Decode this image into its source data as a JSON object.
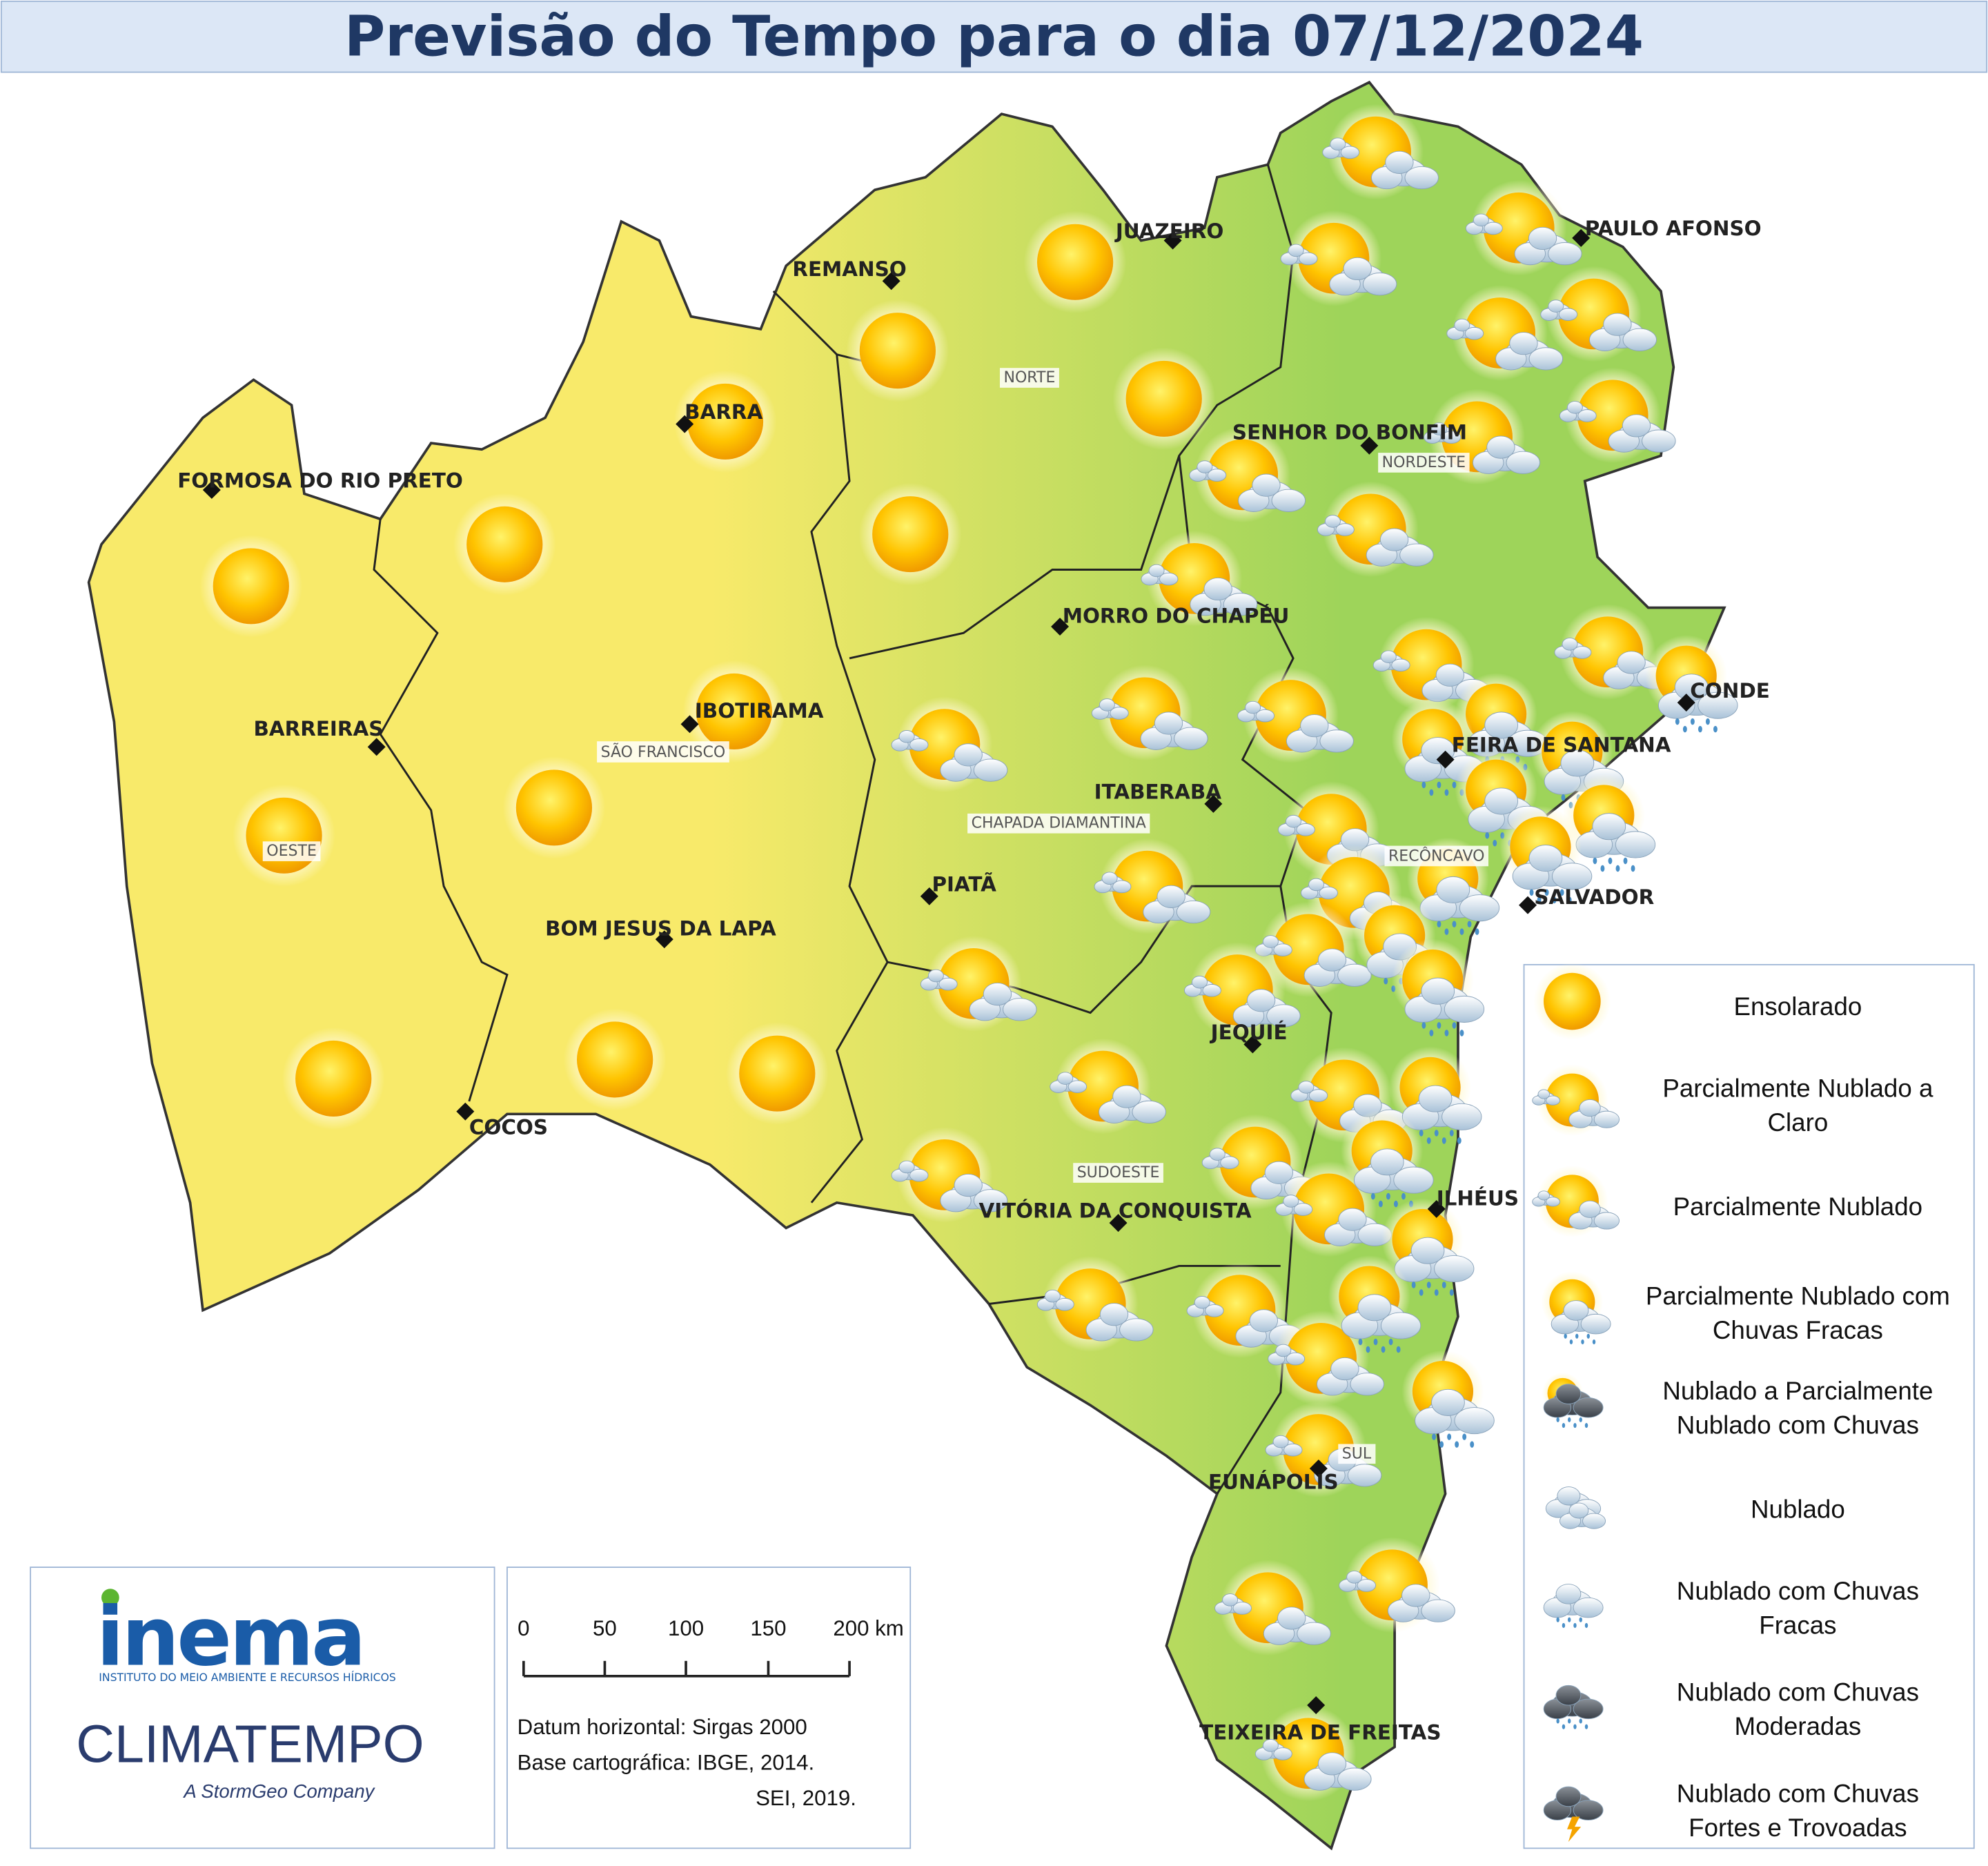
{
  "header": {
    "title": "Previsão do Tempo para o dia 07/12/2024"
  },
  "cities": [
    "JUAZEIRO",
    "REMANSO",
    "PAULO AFONSO",
    "BARRA",
    "SENHOR DO BONFIM",
    "FORMOSA DO RIO PRETO",
    "MORRO DO CHAPÉU",
    "CONDE",
    "IBOTIRAMA",
    "BARREIRAS",
    "FEIRA DE SANTANA",
    "ITABERABA",
    "PIATÃ",
    "SALVADOR",
    "BOM JESUS DA LAPA",
    "JEQUIÉ",
    "COCOS",
    "ILHÉUS",
    "VITÓRIA DA CONQUISTA",
    "EUNÁPOLIS",
    "TEIXEIRA DE FREITAS"
  ],
  "regions": [
    "NORTE",
    "NORDESTE",
    "SÃO FRANCISCO",
    "CHAPADA DIAMANTINA",
    "OESTE",
    "RECÔNCAVO",
    "SUDOESTE",
    "SUL"
  ],
  "legend": {
    "items": [
      {
        "lines": [
          "Ensolarado"
        ]
      },
      {
        "lines": [
          "Parcialmente Nublado a",
          "Claro"
        ]
      },
      {
        "lines": [
          "Parcialmente Nublado"
        ]
      },
      {
        "lines": [
          "Parcialmente Nublado com",
          "Chuvas Fracas"
        ]
      },
      {
        "lines": [
          "Nublado a Parcialmente",
          "Nublado com Chuvas"
        ]
      },
      {
        "lines": [
          "Nublado"
        ]
      },
      {
        "lines": [
          "Nublado com Chuvas",
          "Fracas"
        ]
      },
      {
        "lines": [
          "Nublado com Chuvas",
          "Moderadas"
        ]
      },
      {
        "lines": [
          "Nublado com Chuvas",
          "Fortes e Trovoadas"
        ]
      }
    ]
  },
  "scale": {
    "labels": [
      "0",
      "50",
      "100",
      "150",
      "200 km"
    ],
    "notes": [
      "Datum horizontal: Sirgas 2000",
      "Base cartográfica: IBGE, 2014.",
      "SEI, 2019."
    ]
  },
  "credits": {
    "logo": "inema",
    "institute": "INSTITUTO DO MEIO AMBIENTE E RECURSOS HÍDRICOS",
    "partner": "CLIMATEMPO",
    "partner_tagline": "A StormGeo Company"
  }
}
